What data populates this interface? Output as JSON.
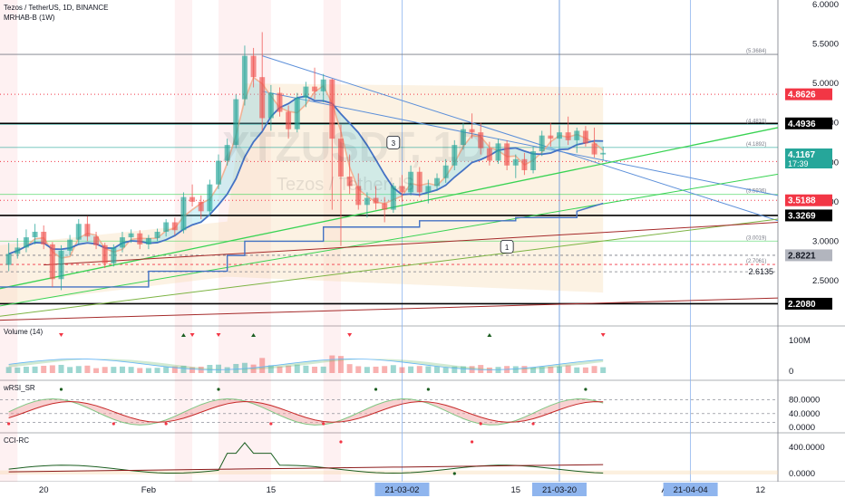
{
  "header": {
    "symbol_line": "Tezos / TetherUS, 1D, BINANCE",
    "indicator_line": "MRHAB-B (1W)",
    "watermark_symbol": "XTZUSDT, 1D",
    "watermark_name": "Tezos / TetherUS"
  },
  "colors": {
    "up": "#26a69a",
    "down": "#ef5350",
    "price_label_red": "#f23645",
    "axis_label_blue": "#8fb5ee",
    "trend_green": "#39d353",
    "trend_blue": "#5b8fd9",
    "support_black": "#000000"
  },
  "chart_data": [
    {
      "type": "candlestick",
      "name": "price",
      "y_axis": {
        "min": 2.0,
        "max": 6.0,
        "ticks": [
          "6.0000",
          "5.5000",
          "5.0000",
          "4.5000",
          "4.0000",
          "3.5000",
          "3.0000",
          "2.5000"
        ],
        "tick_values": [
          6.0,
          5.5,
          5.0,
          4.5,
          4.0,
          3.5,
          3.0,
          2.5
        ]
      },
      "x_axis": {
        "ticks": [
          "20",
          "Feb",
          "15",
          "21-03-02",
          "15",
          "21-03-20",
          "A",
          "21-04-04",
          "12"
        ],
        "highlighted_ticks": [
          "21-03-02",
          "21-03-20",
          "21-04-04"
        ],
        "start_date": "2021-01-15",
        "end_date": "2021-04-14"
      },
      "candles": [
        [
          "2021-01-16",
          2.7,
          2.98,
          2.62,
          2.84
        ],
        [
          "2021-01-17",
          2.84,
          3.04,
          2.78,
          2.92
        ],
        [
          "2021-01-18",
          2.92,
          3.15,
          2.86,
          3.05
        ],
        [
          "2021-01-19",
          3.05,
          3.22,
          2.96,
          3.12
        ],
        [
          "2021-01-20",
          3.12,
          3.2,
          2.9,
          2.96
        ],
        [
          "2021-01-21",
          2.96,
          2.99,
          2.42,
          2.52
        ],
        [
          "2021-01-22",
          2.52,
          2.95,
          2.38,
          2.88
        ],
        [
          "2021-01-23",
          2.88,
          3.08,
          2.82,
          3.02
        ],
        [
          "2021-01-24",
          3.02,
          3.28,
          2.96,
          3.22
        ],
        [
          "2021-01-25",
          3.22,
          3.32,
          3.0,
          3.06
        ],
        [
          "2021-01-26",
          3.06,
          3.12,
          2.9,
          2.95
        ],
        [
          "2021-01-27",
          2.95,
          2.98,
          2.66,
          2.72
        ],
        [
          "2021-01-28",
          2.72,
          2.96,
          2.68,
          2.92
        ],
        [
          "2021-01-29",
          2.92,
          3.12,
          2.86,
          3.05
        ],
        [
          "2021-01-30",
          3.05,
          3.15,
          2.98,
          3.1
        ],
        [
          "2021-01-31",
          3.1,
          3.14,
          2.9,
          2.96
        ],
        [
          "2021-02-01",
          2.96,
          3.08,
          2.9,
          3.04
        ],
        [
          "2021-02-02",
          3.04,
          3.16,
          3.0,
          3.12
        ],
        [
          "2021-02-03",
          3.12,
          3.28,
          3.06,
          3.24
        ],
        [
          "2021-02-04",
          3.24,
          3.3,
          3.08,
          3.14
        ],
        [
          "2021-02-05",
          3.14,
          3.62,
          3.1,
          3.56
        ],
        [
          "2021-02-06",
          3.56,
          3.72,
          3.44,
          3.5
        ],
        [
          "2021-02-07",
          3.5,
          3.58,
          3.28,
          3.38
        ],
        [
          "2021-02-08",
          3.38,
          3.78,
          3.32,
          3.72
        ],
        [
          "2021-02-09",
          3.72,
          4.1,
          3.66,
          4.02
        ],
        [
          "2021-02-10",
          4.02,
          4.3,
          3.96,
          4.22
        ],
        [
          "2021-02-11",
          4.22,
          4.86,
          4.18,
          4.8
        ],
        [
          "2021-02-12",
          4.8,
          5.48,
          4.72,
          5.35
        ],
        [
          "2021-02-13",
          5.35,
          5.45,
          4.95,
          5.08
        ],
        [
          "2021-02-14",
          5.08,
          5.65,
          4.4,
          4.56
        ],
        [
          "2021-02-15",
          4.56,
          4.98,
          4.4,
          4.88
        ],
        [
          "2021-02-16",
          4.88,
          4.95,
          4.58,
          4.64
        ],
        [
          "2021-02-17",
          4.64,
          4.72,
          4.3,
          4.42
        ],
        [
          "2021-02-18",
          4.42,
          4.88,
          4.38,
          4.82
        ],
        [
          "2021-02-19",
          4.82,
          5.02,
          4.7,
          4.96
        ],
        [
          "2021-02-20",
          4.96,
          5.2,
          4.8,
          4.9
        ],
        [
          "2021-02-21",
          4.9,
          5.12,
          4.76,
          5.05
        ],
        [
          "2021-02-22",
          5.05,
          5.06,
          3.4,
          4.3
        ],
        [
          "2021-02-23",
          4.3,
          4.48,
          2.94,
          3.82
        ],
        [
          "2021-02-24",
          3.82,
          4.1,
          3.6,
          3.7
        ],
        [
          "2021-02-25",
          3.7,
          3.86,
          3.4,
          3.46
        ],
        [
          "2021-02-26",
          3.46,
          3.62,
          3.3,
          3.55
        ],
        [
          "2021-02-27",
          3.55,
          3.7,
          3.4,
          3.48
        ],
        [
          "2021-02-28",
          3.48,
          3.56,
          3.24,
          3.4
        ],
        [
          "2021-03-01",
          3.4,
          3.74,
          3.36,
          3.7
        ],
        [
          "2021-03-02",
          3.7,
          3.84,
          3.5,
          3.62
        ],
        [
          "2021-03-03",
          3.62,
          3.96,
          3.58,
          3.88
        ],
        [
          "2021-03-04",
          3.88,
          3.94,
          3.56,
          3.62
        ],
        [
          "2021-03-05",
          3.62,
          3.78,
          3.48,
          3.7
        ],
        [
          "2021-03-06",
          3.7,
          3.86,
          3.64,
          3.8
        ],
        [
          "2021-03-07",
          3.8,
          4.04,
          3.74,
          3.96
        ],
        [
          "2021-03-08",
          3.96,
          4.28,
          3.9,
          4.22
        ],
        [
          "2021-03-09",
          4.22,
          4.5,
          4.16,
          4.42
        ],
        [
          "2021-03-10",
          4.42,
          4.62,
          4.3,
          4.38
        ],
        [
          "2021-03-11",
          4.38,
          4.5,
          4.1,
          4.18
        ],
        [
          "2021-03-12",
          4.18,
          4.26,
          3.96,
          4.02
        ],
        [
          "2021-03-13",
          4.02,
          4.3,
          3.98,
          4.24
        ],
        [
          "2021-03-14",
          4.24,
          4.28,
          3.9,
          3.96
        ],
        [
          "2021-03-15",
          3.96,
          4.1,
          3.8,
          4.04
        ],
        [
          "2021-03-16",
          4.04,
          4.12,
          3.84,
          3.9
        ],
        [
          "2021-03-17",
          3.9,
          4.2,
          3.86,
          4.14
        ],
        [
          "2021-03-18",
          4.14,
          4.4,
          4.08,
          4.34
        ],
        [
          "2021-03-19",
          4.34,
          4.5,
          4.2,
          4.3
        ],
        [
          "2021-03-20",
          4.3,
          4.46,
          4.18,
          4.38
        ],
        [
          "2021-03-21",
          4.38,
          4.58,
          4.22,
          4.28
        ],
        [
          "2021-03-22",
          4.28,
          4.44,
          4.12,
          4.4
        ],
        [
          "2021-03-23",
          4.4,
          4.46,
          4.2,
          4.24
        ],
        [
          "2021-03-24",
          4.24,
          4.44,
          4.06,
          4.1
        ],
        [
          "2021-03-25",
          4.1,
          4.2,
          4.02,
          4.12
        ]
      ],
      "horizontal_levels": [
        {
          "price": 5.3684,
          "label": "(5.3684)",
          "style": "thin-gray"
        },
        {
          "price": 4.8626,
          "label": "4.8626",
          "style": "dotted-red",
          "axis_tag": "red"
        },
        {
          "price": 4.4936,
          "label": "4.4936",
          "style": "bold-black",
          "axis_tag": "black"
        },
        {
          "price": 4.481,
          "label": "(4.4810)",
          "style": "thin-teal"
        },
        {
          "price": 4.1892,
          "label": "(4.1892)",
          "style": "thin-teal"
        },
        {
          "price": 4.01,
          "label": "4.0100",
          "style": "dotted-red",
          "axis_tag": "red"
        },
        {
          "price": 3.5936,
          "label": "(3.5936)",
          "style": "thin-green"
        },
        {
          "price": 3.5188,
          "label": "3.5188",
          "style": "dotted-red",
          "axis_tag": "red"
        },
        {
          "price": 3.3269,
          "label": "3.3269",
          "style": "bold-black",
          "axis_tag": "black"
        },
        {
          "price": 3.0019,
          "label": "(3.0019)",
          "style": "thin-green"
        },
        {
          "price": 2.8221,
          "label": "2.8221",
          "style": "dashed-gray",
          "axis_tag": "gray"
        },
        {
          "price": 2.7061,
          "label": "(2.7061)",
          "style": "dashed-red"
        },
        {
          "price": 2.6135,
          "label": "2.6135",
          "style": "dashed-gray"
        },
        {
          "price": 2.208,
          "label": "2.2080",
          "style": "bold-black",
          "axis_tag": "black"
        }
      ],
      "last_price": {
        "value": "4.1167",
        "countdown": "17:39",
        "price": 4.1167
      },
      "annotations": [
        {
          "text": "3",
          "date": "2021-03-01",
          "price": 4.24
        },
        {
          "text": "1",
          "date": "2021-03-14",
          "price": 2.92
        }
      ]
    },
    {
      "type": "area",
      "name": "Volume (14)",
      "title": "Volume (14)",
      "y_axis": {
        "ticks": [
          "100M",
          "0"
        ],
        "tick_values": [
          100,
          0
        ]
      }
    },
    {
      "type": "line",
      "name": "wRSI_SR",
      "title": "wRSI_SR",
      "y_axis": {
        "min": 0,
        "max": 100,
        "ticks": [
          "80.0000",
          "40.0000",
          "0.0000"
        ],
        "tick_values": [
          80,
          40,
          0
        ]
      }
    },
    {
      "type": "line",
      "name": "CCI-RC",
      "title": "CCI-RC",
      "y_axis": {
        "min": -100,
        "max": 600,
        "ticks": [
          "400.0000",
          "0.0000"
        ],
        "tick_values": [
          400,
          0
        ]
      }
    }
  ]
}
